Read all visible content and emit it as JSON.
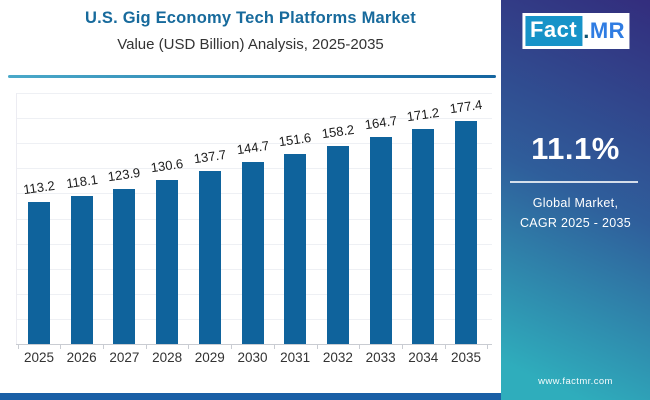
{
  "header": {
    "title": "U.S. Gig Economy Tech Platforms Market",
    "subtitle": "Value (USD Billion) Analysis, 2025-2035"
  },
  "chart_data": {
    "type": "bar",
    "title": "U.S. Gig Economy Tech Platforms Market",
    "subtitle": "Value (USD Billion) Analysis, 2025-2035",
    "categories": [
      "2025",
      "2026",
      "2027",
      "2028",
      "2029",
      "2030",
      "2031",
      "2032",
      "2033",
      "2034",
      "2035"
    ],
    "values": [
      113.2,
      118.1,
      123.9,
      130.6,
      137.7,
      144.7,
      151.6,
      158.2,
      164.7,
      171.2,
      177.4
    ],
    "xlabel": "",
    "ylabel": "",
    "units": "USD Billion",
    "ylim": [
      0,
      200
    ],
    "grid": true,
    "data_labels": true,
    "legend": "none"
  },
  "side_panel": {
    "logo": {
      "fact": "Fact",
      "dot": ".",
      "mr": "MR"
    },
    "cagr_value": "11.1%",
    "cagr_label_line1": "Global Market,",
    "cagr_label_line2": "CAGR 2025 - 2035",
    "website": "www.factmr.com"
  },
  "colors": {
    "title": "#176a9c",
    "bar": "#0f639c",
    "axis": "#c9ccd2",
    "grid": "#eef0f4",
    "strip": "#1a5fa6",
    "panel_top": "#332d7d",
    "panel_mid": "#2f5e9b",
    "panel_bottom": "#2fadbc",
    "logo_teal": "#1793c8",
    "logo_blue": "#2f7ce2",
    "logo_dot": "#0e5372",
    "divider_left": "#4aa9c9",
    "divider_right": "#1565a0"
  }
}
